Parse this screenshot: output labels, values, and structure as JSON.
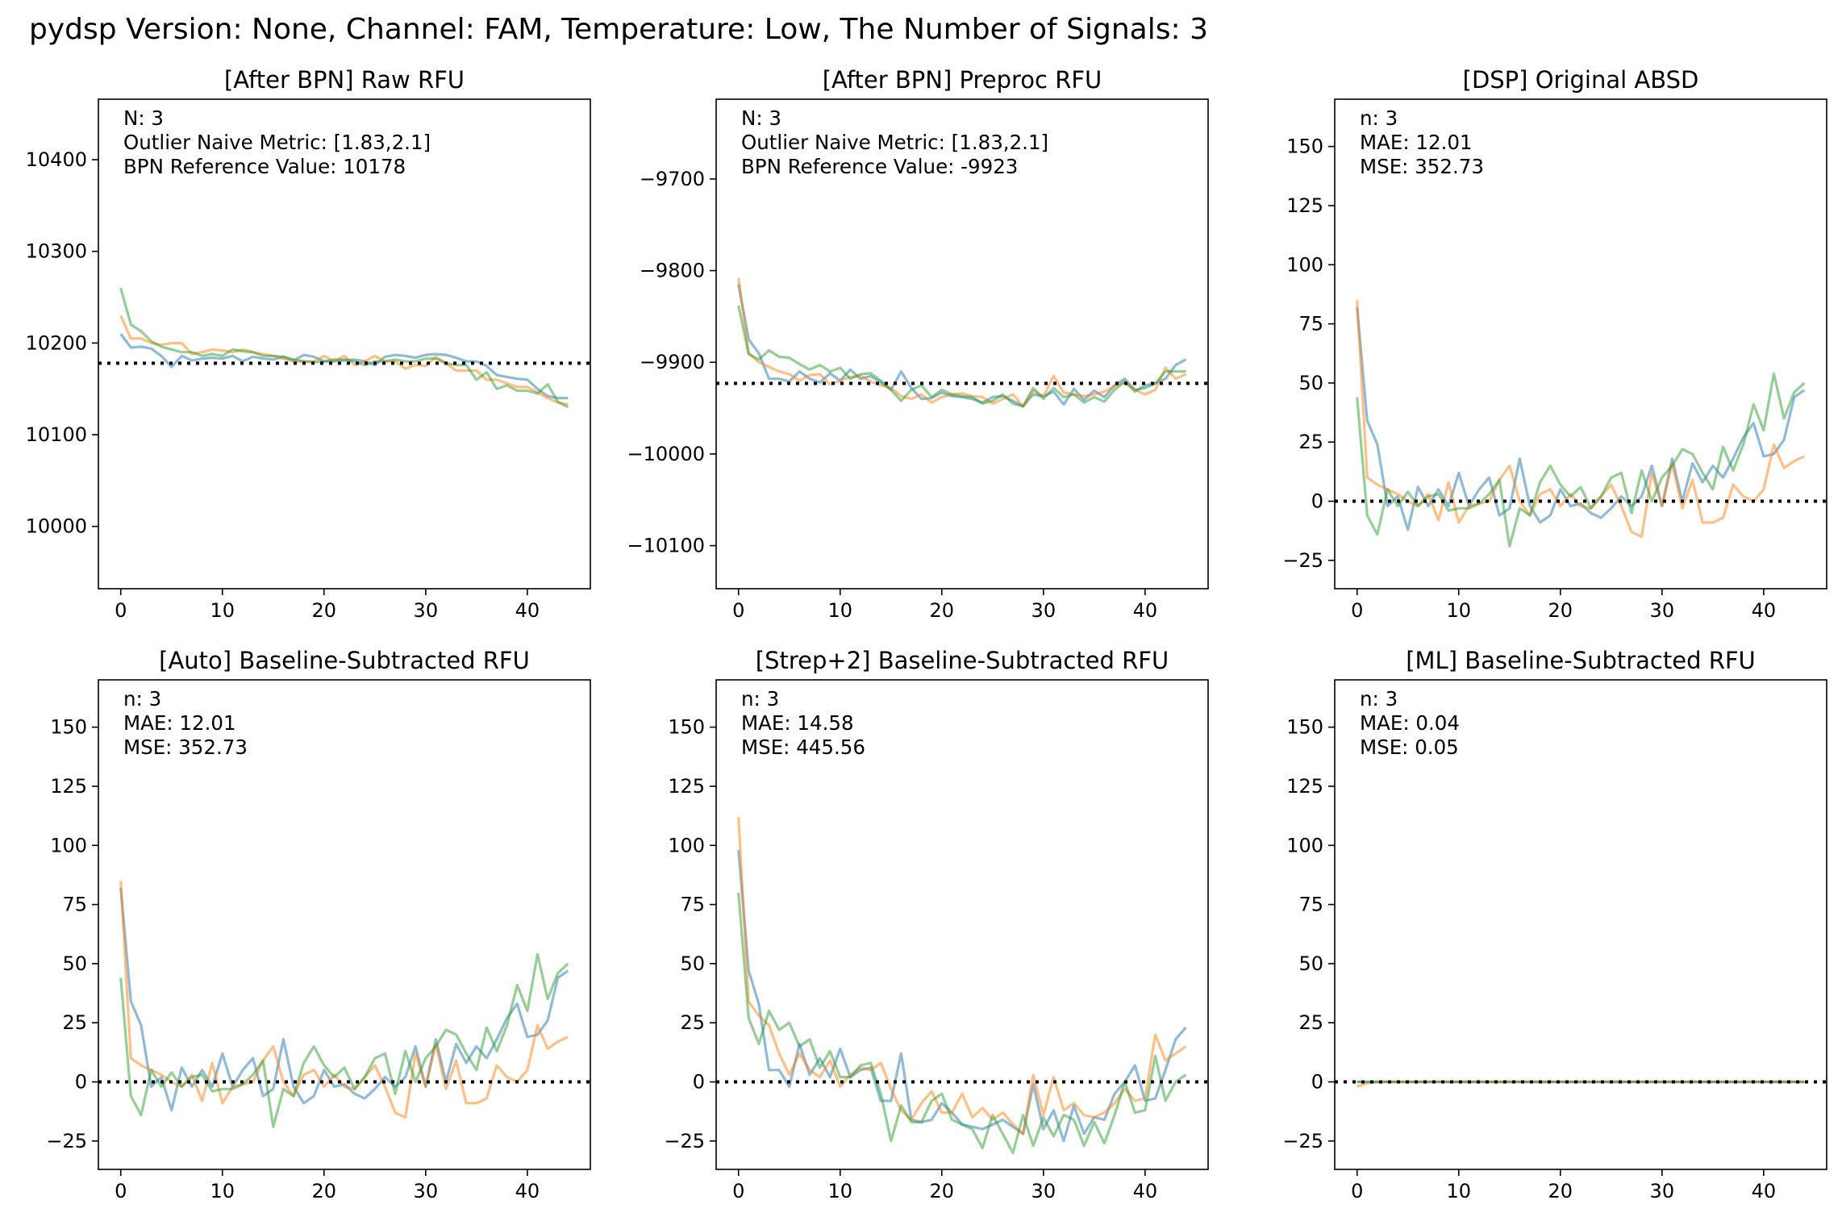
{
  "figure": {
    "suptitle": "pydsp Version: None, Channel: FAM, Temperature: Low, The Number of Signals: 3"
  },
  "colors": {
    "series": [
      "#1f77b4",
      "#ff7f0e",
      "#2ca02c"
    ],
    "refline": "#000000"
  },
  "chart_data": [
    {
      "type": "line",
      "title": "[After BPN] Raw RFU",
      "annotation": [
        "N: 3",
        "Outlier Naive Metric: [1.83,2.1]",
        "BPN Reference Value: 10178"
      ],
      "xlim": [
        -2.2,
        46.2
      ],
      "ylim": [
        9932,
        10466
      ],
      "xticks": [
        0,
        10,
        20,
        30,
        40
      ],
      "yticks": [
        10000,
        10100,
        10200,
        10300,
        10400
      ],
      "refline": 10178,
      "series": [
        {
          "values": [
            10210,
            10195,
            10196,
            10194,
            10186,
            10174,
            10186,
            10181,
            10183,
            10184,
            10183,
            10186,
            10180,
            10185,
            10183,
            10182,
            10185,
            10181,
            10187,
            10185,
            10180,
            10180,
            10181,
            10182,
            10180,
            10176,
            10185,
            10187,
            10186,
            10184,
            10187,
            10188,
            10187,
            10184,
            10180,
            10180,
            10175,
            10165,
            10163,
            10161,
            10160,
            10150,
            10142,
            10140,
            10140
          ]
        },
        {
          "values": [
            10230,
            10205,
            10205,
            10200,
            10198,
            10200,
            10200,
            10188,
            10190,
            10193,
            10192,
            10190,
            10193,
            10190,
            10188,
            10186,
            10183,
            10180,
            10180,
            10180,
            10186,
            10180,
            10186,
            10176,
            10180,
            10186,
            10180,
            10180,
            10172,
            10176,
            10175,
            10185,
            10178,
            10170,
            10170,
            10170,
            10160,
            10160,
            10156,
            10152,
            10152,
            10146,
            10140,
            10135,
            10133
          ]
        },
        {
          "values": [
            10260,
            10220,
            10213,
            10202,
            10196,
            10193,
            10190,
            10190,
            10186,
            10188,
            10186,
            10193,
            10191,
            10190,
            10186,
            10186,
            10185,
            10182,
            10180,
            10179,
            10180,
            10182,
            10182,
            10180,
            10176,
            10180,
            10180,
            10182,
            10180,
            10180,
            10183,
            10183,
            10178,
            10176,
            10176,
            10160,
            10168,
            10150,
            10154,
            10148,
            10148,
            10145,
            10155,
            10136,
            10130
          ]
        }
      ]
    },
    {
      "type": "line",
      "title": "[After BPN] Preproc RFU",
      "annotation": [
        "N: 3",
        "Outlier Naive Metric: [1.83,2.1]",
        "BPN Reference Value: -9923"
      ],
      "xlim": [
        -2.2,
        46.2
      ],
      "ylim": [
        -10147,
        -9613
      ],
      "xticks": [
        0,
        10,
        20,
        30,
        40
      ],
      "yticks": [
        -9700,
        -9800,
        -9900,
        -10000,
        -10100
      ],
      "refline": -9923,
      "series": [
        {
          "values": [
            -9815,
            -9875,
            -9890,
            -9918,
            -9918,
            -9921,
            -9910,
            -9918,
            -9922,
            -9912,
            -9920,
            -9908,
            -9918,
            -9915,
            -9922,
            -9930,
            -9910,
            -9928,
            -9940,
            -9939,
            -9933,
            -9937,
            -9938,
            -9940,
            -9944,
            -9938,
            -9937,
            -9942,
            -9948,
            -9935,
            -9937,
            -9932,
            -9946,
            -9929,
            -9941,
            -9931,
            -9938,
            -9925,
            -9918,
            -9930,
            -9928,
            -9923,
            -9918,
            -9903,
            -9897
          ]
        },
        {
          "values": [
            -9808,
            -9890,
            -9900,
            -9905,
            -9910,
            -9913,
            -9920,
            -9914,
            -9913,
            -9924,
            -9920,
            -9916,
            -9915,
            -9921,
            -9925,
            -9928,
            -9937,
            -9940,
            -9935,
            -9944,
            -9938,
            -9935,
            -9934,
            -9937,
            -9938,
            -9945,
            -9940,
            -9935,
            -9948,
            -9931,
            -9937,
            -9915,
            -9933,
            -9935,
            -9937,
            -9935,
            -9932,
            -9926,
            -9922,
            -9930,
            -9935,
            -9930,
            -9906,
            -9918,
            -9913
          ]
        },
        {
          "values": [
            -9838,
            -9891,
            -9897,
            -9887,
            -9894,
            -9895,
            -9902,
            -9908,
            -9903,
            -9910,
            -9906,
            -9918,
            -9913,
            -9912,
            -9920,
            -9930,
            -9942,
            -9930,
            -9925,
            -9938,
            -9930,
            -9935,
            -9937,
            -9938,
            -9945,
            -9942,
            -9935,
            -9945,
            -9948,
            -9928,
            -9940,
            -9928,
            -9938,
            -9935,
            -9944,
            -9938,
            -9943,
            -9930,
            -9921,
            -9932,
            -9925,
            -9923,
            -9910,
            -9910,
            -9910
          ]
        }
      ]
    },
    {
      "type": "line",
      "title": "[DSP] Original ABSD",
      "annotation": [
        "n: 3",
        "MAE: 12.01",
        "MSE: 352.73"
      ],
      "xlim": [
        -2.2,
        46.2
      ],
      "ylim": [
        -37,
        170
      ],
      "xticks": [
        0,
        10,
        20,
        30,
        40
      ],
      "yticks": [
        150,
        125,
        100,
        75,
        50,
        25,
        0,
        -25
      ],
      "refline": 0,
      "series": [
        {
          "values": [
            82,
            34,
            24,
            -2,
            2,
            -12,
            6,
            -2,
            5,
            -2,
            12,
            -2,
            5,
            10,
            -6,
            -3,
            18,
            -2,
            -9,
            -6,
            5,
            -2,
            -1,
            -5,
            -7,
            -3,
            2,
            -2,
            2,
            15,
            -2,
            18,
            0,
            16,
            8,
            15,
            10,
            18,
            27,
            33,
            19,
            20,
            26,
            44,
            47
          ]
        },
        {
          "values": [
            85,
            10,
            7,
            5,
            3,
            0,
            -2,
            3,
            -8,
            8,
            -9,
            -2,
            -1,
            0,
            9,
            15,
            0,
            -6,
            3,
            5,
            -2,
            3,
            -2,
            -3,
            2,
            7,
            -2,
            -13,
            -15,
            12,
            -2,
            16,
            -3,
            9,
            -9,
            -9,
            -7,
            7,
            2,
            0,
            5,
            24,
            14,
            17,
            19
          ]
        },
        {
          "values": [
            44,
            -6,
            -14,
            5,
            -2,
            4,
            -2,
            2,
            3,
            -4,
            -3,
            -3,
            -1,
            3,
            9,
            -19,
            -3,
            -6,
            8,
            15,
            7,
            2,
            6,
            -3,
            2,
            10,
            12,
            -5,
            13,
            0,
            10,
            15,
            22,
            20,
            12,
            5,
            23,
            13,
            24,
            41,
            30,
            54,
            35,
            46,
            50
          ]
        }
      ]
    },
    {
      "type": "line",
      "title": "[Auto] Baseline-Subtracted RFU",
      "annotation": [
        "n: 3",
        "MAE: 12.01",
        "MSE: 352.73"
      ],
      "xlim": [
        -2.2,
        46.2
      ],
      "ylim": [
        -37,
        170
      ],
      "xticks": [
        0,
        10,
        20,
        30,
        40
      ],
      "yticks": [
        150,
        125,
        100,
        75,
        50,
        25,
        0,
        -25
      ],
      "refline": 0,
      "series": [
        {
          "values": [
            82,
            34,
            24,
            -2,
            2,
            -12,
            6,
            -2,
            5,
            -2,
            12,
            -2,
            5,
            10,
            -6,
            -3,
            18,
            -2,
            -9,
            -6,
            5,
            -2,
            -1,
            -5,
            -7,
            -3,
            2,
            -2,
            2,
            15,
            -2,
            18,
            0,
            16,
            8,
            15,
            10,
            18,
            27,
            33,
            19,
            20,
            26,
            44,
            47
          ]
        },
        {
          "values": [
            85,
            10,
            7,
            5,
            3,
            0,
            -2,
            3,
            -8,
            8,
            -9,
            -2,
            -1,
            0,
            9,
            15,
            0,
            -6,
            3,
            5,
            -2,
            3,
            -2,
            -3,
            2,
            7,
            -2,
            -13,
            -15,
            12,
            -2,
            16,
            -3,
            9,
            -9,
            -9,
            -7,
            7,
            2,
            0,
            5,
            24,
            14,
            17,
            19
          ]
        },
        {
          "values": [
            44,
            -6,
            -14,
            5,
            -2,
            4,
            -2,
            2,
            3,
            -4,
            -3,
            -3,
            -1,
            3,
            9,
            -19,
            -3,
            -6,
            8,
            15,
            7,
            2,
            6,
            -3,
            2,
            10,
            12,
            -5,
            13,
            0,
            10,
            15,
            22,
            20,
            12,
            5,
            23,
            13,
            24,
            41,
            30,
            54,
            35,
            46,
            50
          ]
        }
      ]
    },
    {
      "type": "line",
      "title": "[Strep+2] Baseline-Subtracted RFU",
      "annotation": [
        "n: 3",
        "MAE: 14.58",
        "MSE: 445.56"
      ],
      "xlim": [
        -2.2,
        46.2
      ],
      "ylim": [
        -37,
        170
      ],
      "xticks": [
        0,
        10,
        20,
        30,
        40
      ],
      "yticks": [
        150,
        125,
        100,
        75,
        50,
        25,
        0,
        -25
      ],
      "refline": 0,
      "series": [
        {
          "values": [
            98,
            47,
            33,
            5,
            5,
            -2,
            16,
            3,
            10,
            2,
            14,
            2,
            5,
            6,
            -8,
            -8,
            12,
            -16,
            -17,
            -16,
            -9,
            -13,
            -18,
            -19,
            -20,
            -18,
            -16,
            -19,
            -22,
            -1,
            -20,
            -12,
            -25,
            -10,
            -22,
            -15,
            -16,
            -5,
            0,
            7,
            -8,
            -7,
            5,
            18,
            23
          ]
        },
        {
          "values": [
            112,
            34,
            28,
            24,
            12,
            3,
            12,
            5,
            2,
            9,
            -2,
            3,
            6,
            5,
            8,
            -3,
            -12,
            -16,
            -9,
            -4,
            -13,
            -13,
            -5,
            -15,
            -11,
            -16,
            -13,
            -18,
            -22,
            3,
            -14,
            2,
            -12,
            -9,
            -14,
            -15,
            -13,
            -9,
            -3,
            -8,
            -7,
            20,
            9,
            12,
            15
          ]
        },
        {
          "values": [
            80,
            27,
            16,
            30,
            22,
            25,
            15,
            18,
            6,
            13,
            2,
            2,
            7,
            8,
            -5,
            -25,
            -10,
            -17,
            -17,
            -8,
            -5,
            -16,
            -18,
            -20,
            -28,
            -14,
            -22,
            -30,
            -14,
            -27,
            -15,
            -23,
            -14,
            -16,
            -27,
            -17,
            -26,
            -14,
            0,
            -13,
            -12,
            11,
            -8,
            0,
            3
          ]
        }
      ]
    },
    {
      "type": "line",
      "title": "[ML] Baseline-Subtracted RFU",
      "annotation": [
        "n: 3",
        "MAE: 0.04",
        "MSE: 0.05"
      ],
      "xlim": [
        -2.2,
        46.2
      ],
      "ylim": [
        -37,
        170
      ],
      "xticks": [
        0,
        10,
        20,
        30,
        40
      ],
      "yticks": [
        150,
        125,
        100,
        75,
        50,
        25,
        0,
        -25
      ],
      "refline": 0,
      "series": [
        {
          "values": [
            0,
            0,
            0,
            0,
            0,
            0,
            0,
            0,
            0,
            0,
            0,
            0,
            0,
            0,
            0,
            0,
            0,
            0,
            0,
            0,
            0,
            0,
            0,
            0,
            0,
            0,
            0,
            0,
            0,
            0,
            0,
            0,
            0,
            0,
            0,
            0,
            0,
            0,
            0,
            0,
            0,
            0,
            0,
            0,
            0
          ]
        },
        {
          "values": [
            -2,
            -0.5,
            0,
            0,
            0,
            0,
            0,
            0,
            0,
            0,
            0,
            0,
            0,
            0,
            0,
            0,
            0,
            0,
            0,
            0,
            0,
            0,
            0,
            0,
            0,
            0,
            0,
            0,
            0,
            0,
            0,
            0,
            0,
            0,
            0,
            0,
            0,
            0,
            0,
            0,
            0,
            0,
            0,
            0,
            0
          ]
        },
        {
          "values": [
            0,
            0,
            0,
            0,
            0,
            0,
            0,
            0,
            0,
            0,
            0,
            0,
            0,
            0,
            0,
            0,
            0,
            0,
            0,
            0,
            0,
            0,
            0,
            0,
            0,
            0,
            0,
            0,
            0,
            0,
            0,
            0,
            0,
            0,
            0,
            0,
            0,
            0,
            0,
            0,
            0,
            0,
            0,
            0,
            0
          ]
        }
      ]
    }
  ]
}
